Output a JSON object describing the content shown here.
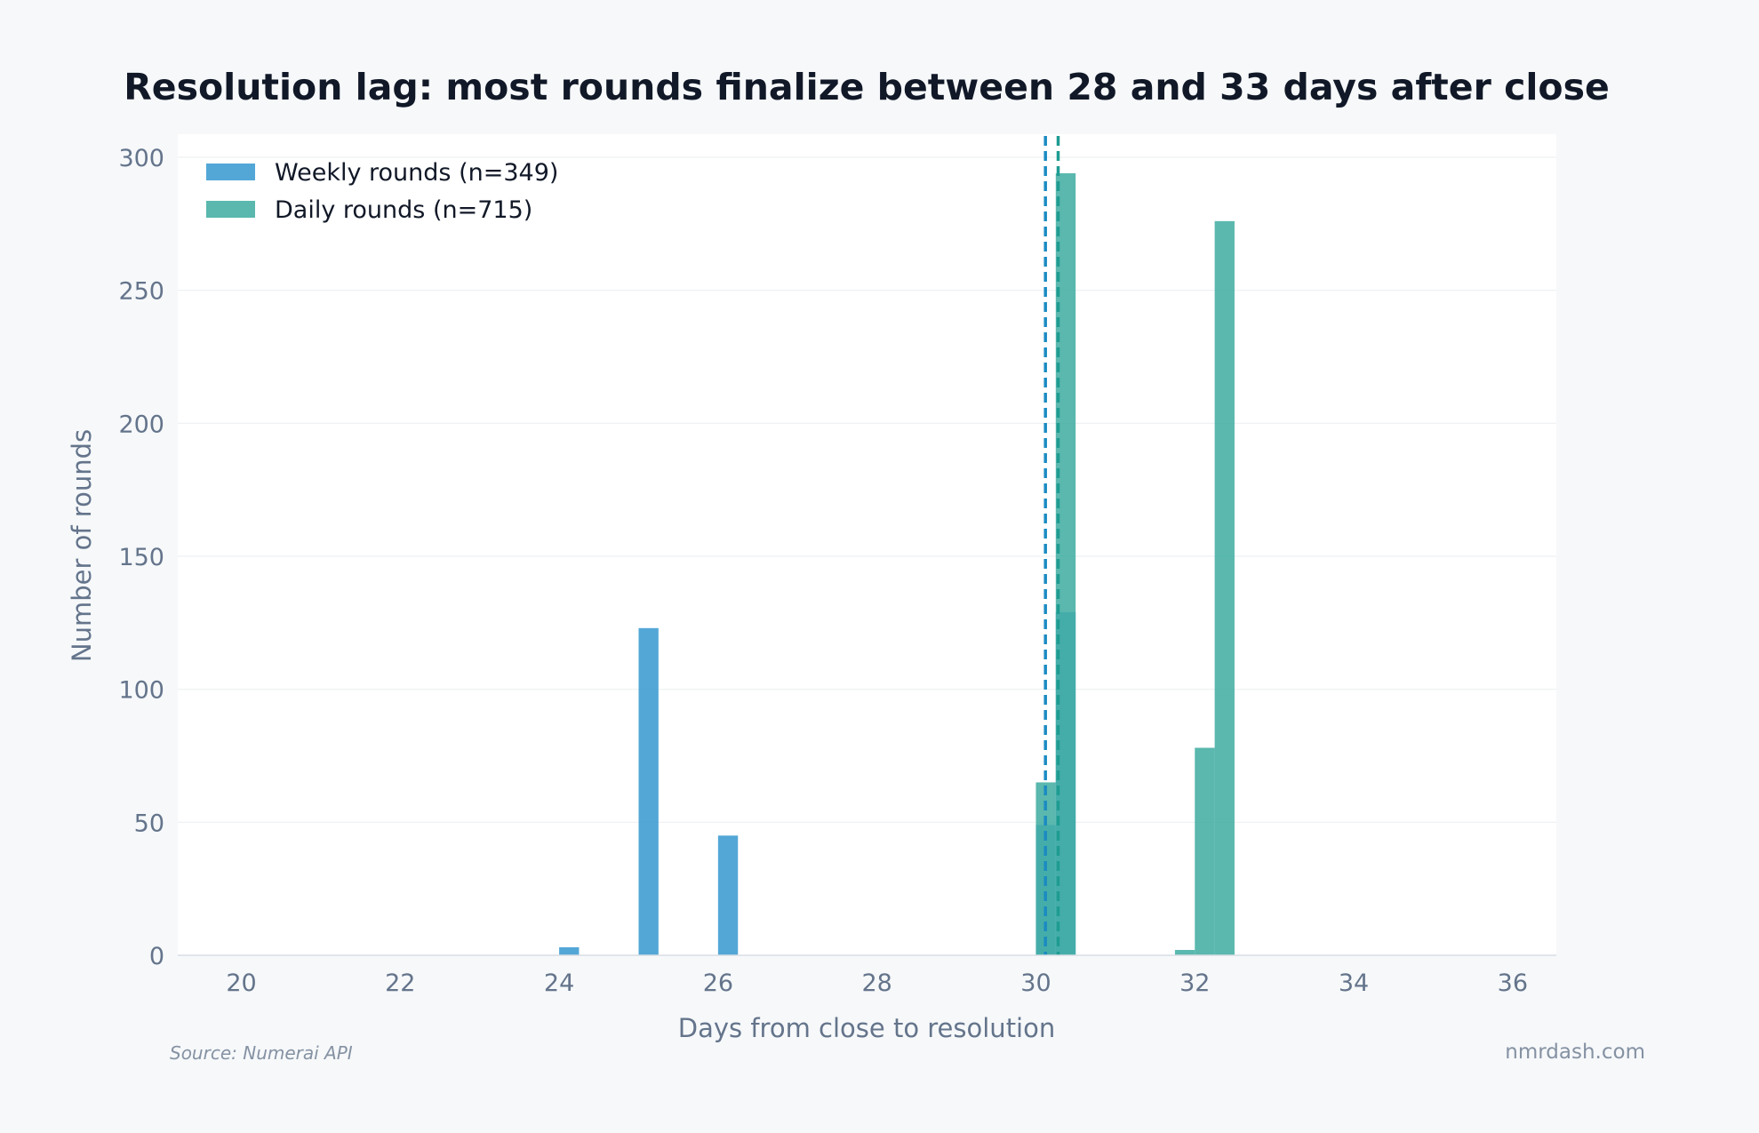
{
  "chart_data": {
    "type": "bar",
    "title": "Resolution lag: most rounds finalize between 28 and 33 days after close",
    "xlabel": "Days from close to resolution",
    "ylabel": "Number of rounds",
    "xlim": [
      19.2,
      36.55
    ],
    "ylim": [
      0,
      300
    ],
    "x_ticks": [
      "20",
      "22",
      "24",
      "26",
      "28",
      "30",
      "32",
      "34",
      "36"
    ],
    "y_ticks": [
      "0",
      "50",
      "100",
      "150",
      "200",
      "250",
      "300"
    ],
    "bin_width": 0.25,
    "grid": true,
    "legend_position": "top-left",
    "series": [
      {
        "name": "Weekly rounds (n=349)",
        "color": "#3b9bd1",
        "bins": [
          {
            "x0": 24.0,
            "count": 3
          },
          {
            "x0": 25.0,
            "count": 123
          },
          {
            "x0": 26.0,
            "count": 45
          },
          {
            "x0": 30.0,
            "count": 49
          },
          {
            "x0": 30.25,
            "count": 129
          }
        ],
        "median": 30.12
      },
      {
        "name": "Daily rounds (n=715)",
        "color": "#43aea3",
        "bins": [
          {
            "x0": 30.0,
            "count": 65
          },
          {
            "x0": 30.25,
            "count": 294
          },
          {
            "x0": 31.75,
            "count": 2
          },
          {
            "x0": 32.0,
            "count": 78
          },
          {
            "x0": 32.25,
            "count": 276
          }
        ],
        "median": 30.28
      }
    ]
  },
  "footer": {
    "source": "Source: Numerai API",
    "brand": "nmrdash.com"
  }
}
